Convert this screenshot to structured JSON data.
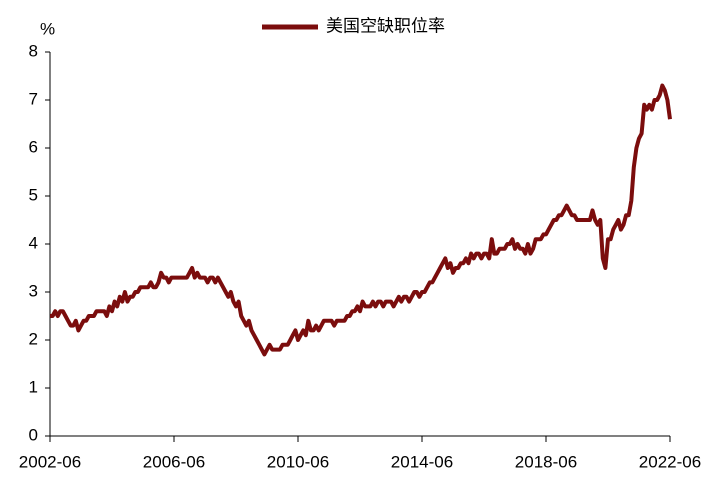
{
  "chart_data": {
    "type": "line",
    "y_label": "%",
    "ylim": [
      0,
      8
    ],
    "yticks": [
      0,
      1,
      2,
      3,
      4,
      5,
      6,
      7,
      8
    ],
    "categories": [
      "2002-06",
      null,
      null,
      null,
      null,
      null,
      null,
      null,
      null,
      null,
      null,
      null,
      null,
      null,
      null,
      null,
      null,
      null,
      null,
      null,
      null,
      null,
      null,
      null,
      null,
      null,
      null,
      null,
      null,
      null,
      null,
      null,
      null,
      null,
      null,
      null,
      null,
      null,
      null,
      null,
      null,
      null,
      null,
      null,
      null,
      null,
      null,
      null,
      "2006-06",
      null,
      null,
      null,
      null,
      null,
      null,
      null,
      null,
      null,
      null,
      null,
      null,
      null,
      null,
      null,
      null,
      null,
      null,
      null,
      null,
      null,
      null,
      null,
      null,
      null,
      null,
      null,
      null,
      null,
      null,
      null,
      null,
      null,
      null,
      null,
      null,
      null,
      null,
      null,
      null,
      null,
      null,
      null,
      null,
      null,
      null,
      null,
      "2010-06",
      null,
      null,
      null,
      null,
      null,
      null,
      null,
      null,
      null,
      null,
      null,
      null,
      null,
      null,
      null,
      null,
      null,
      null,
      null,
      null,
      null,
      null,
      null,
      null,
      null,
      null,
      null,
      null,
      null,
      null,
      null,
      null,
      null,
      null,
      null,
      null,
      null,
      null,
      null,
      null,
      null,
      null,
      null,
      null,
      null,
      null,
      null,
      "2014-06",
      null,
      null,
      null,
      null,
      null,
      null,
      null,
      null,
      null,
      null,
      null,
      null,
      null,
      null,
      null,
      null,
      null,
      null,
      null,
      null,
      null,
      null,
      null,
      null,
      null,
      null,
      null,
      null,
      null,
      null,
      null,
      null,
      null,
      null,
      null,
      null,
      null,
      null,
      null,
      null,
      null,
      null,
      null,
      null,
      null,
      null,
      null,
      "2018-06",
      null,
      null,
      null,
      null,
      null,
      null,
      null,
      null,
      null,
      null,
      null,
      null,
      null,
      null,
      null,
      null,
      null,
      null,
      null,
      null,
      null,
      null,
      null,
      null,
      null,
      null,
      null,
      null,
      null,
      null,
      null,
      null,
      null,
      null,
      null,
      null,
      null,
      null,
      null,
      null,
      null,
      null,
      null,
      null,
      null,
      null,
      null,
      "2022-06"
    ],
    "series": [
      {
        "name": "美国空缺职位率",
        "color": "#7b0d0d",
        "values": [
          2.5,
          2.5,
          2.6,
          2.5,
          2.6,
          2.6,
          2.5,
          2.4,
          2.3,
          2.3,
          2.4,
          2.2,
          2.3,
          2.4,
          2.4,
          2.5,
          2.5,
          2.5,
          2.6,
          2.6,
          2.6,
          2.6,
          2.5,
          2.7,
          2.6,
          2.8,
          2.7,
          2.9,
          2.8,
          3.0,
          2.8,
          2.9,
          2.9,
          3.0,
          3.0,
          3.1,
          3.1,
          3.1,
          3.1,
          3.2,
          3.1,
          3.1,
          3.2,
          3.4,
          3.3,
          3.3,
          3.2,
          3.3,
          3.3,
          3.3,
          3.3,
          3.3,
          3.3,
          3.3,
          3.4,
          3.5,
          3.3,
          3.4,
          3.3,
          3.3,
          3.3,
          3.2,
          3.3,
          3.3,
          3.2,
          3.3,
          3.2,
          3.1,
          3.0,
          2.9,
          3.0,
          2.8,
          2.7,
          2.8,
          2.5,
          2.4,
          2.3,
          2.4,
          2.2,
          2.1,
          2.0,
          1.9,
          1.8,
          1.7,
          1.8,
          1.9,
          1.8,
          1.8,
          1.8,
          1.8,
          1.9,
          1.9,
          1.9,
          2.0,
          2.1,
          2.2,
          2.0,
          2.1,
          2.2,
          2.1,
          2.4,
          2.2,
          2.2,
          2.3,
          2.2,
          2.3,
          2.4,
          2.4,
          2.4,
          2.4,
          2.3,
          2.4,
          2.4,
          2.4,
          2.4,
          2.5,
          2.5,
          2.6,
          2.6,
          2.7,
          2.6,
          2.8,
          2.7,
          2.7,
          2.7,
          2.8,
          2.7,
          2.8,
          2.8,
          2.7,
          2.8,
          2.8,
          2.8,
          2.7,
          2.8,
          2.9,
          2.8,
          2.9,
          2.9,
          2.8,
          2.9,
          3.0,
          3.0,
          2.9,
          3.0,
          3.0,
          3.1,
          3.2,
          3.2,
          3.3,
          3.4,
          3.5,
          3.6,
          3.7,
          3.5,
          3.6,
          3.4,
          3.5,
          3.5,
          3.6,
          3.6,
          3.7,
          3.6,
          3.8,
          3.7,
          3.8,
          3.8,
          3.7,
          3.8,
          3.8,
          3.7,
          4.1,
          3.8,
          3.8,
          3.9,
          3.9,
          3.9,
          4.0,
          4.0,
          4.1,
          3.9,
          4.0,
          3.9,
          3.9,
          3.8,
          4.0,
          3.8,
          3.9,
          4.1,
          4.1,
          4.1,
          4.2,
          4.2,
          4.3,
          4.4,
          4.5,
          4.5,
          4.6,
          4.6,
          4.7,
          4.8,
          4.7,
          4.6,
          4.6,
          4.5,
          4.5,
          4.5,
          4.5,
          4.5,
          4.5,
          4.7,
          4.5,
          4.4,
          4.5,
          3.7,
          3.5,
          4.1,
          4.1,
          4.3,
          4.4,
          4.5,
          4.3,
          4.4,
          4.6,
          4.6,
          4.9,
          5.6,
          6.0,
          6.2,
          6.3,
          6.9,
          6.8,
          6.9,
          6.8,
          7.0,
          7.0,
          7.1,
          7.3,
          7.2,
          7.0,
          6.6
        ]
      }
    ]
  }
}
